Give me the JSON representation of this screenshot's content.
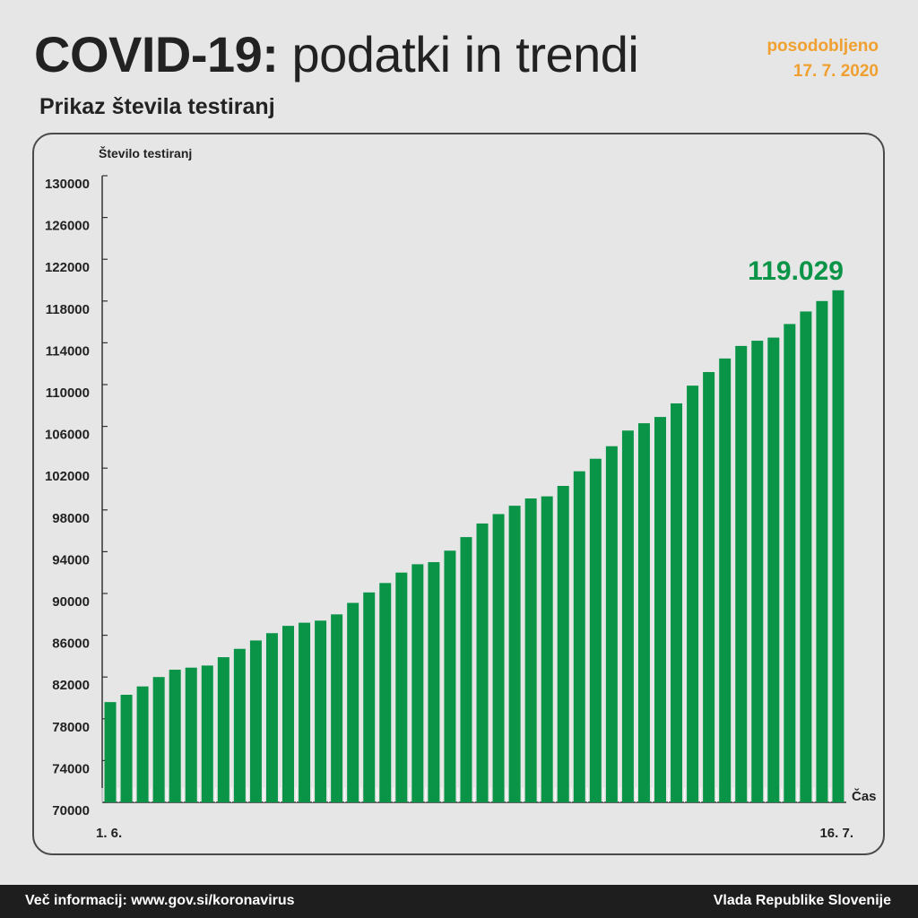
{
  "header": {
    "title_bold": "COVID-19:",
    "title_light": "podatki in trendi",
    "updated_label": "posodobljeno",
    "updated_date": "17. 7. 2020",
    "subtitle": "Prikaz števila testiranj"
  },
  "footer": {
    "left": "Več informacij: www.gov.si/koronavirus",
    "right": "Vlada Republike Slovenije"
  },
  "colors": {
    "bar": "#0a9447",
    "highlight": "#0a9447",
    "updated": "#f0a030",
    "background": "#e6e6e6"
  },
  "chart_data": {
    "type": "bar",
    "title": "Prikaz števila testiranj",
    "ylabel": "Število testiranj",
    "xlabel": "Čas",
    "ylim": [
      70000,
      130000
    ],
    "yticks": [
      "130000",
      "126000",
      "122000",
      "118000",
      "114000",
      "110000",
      "106000",
      "102000",
      "98000",
      "94000",
      "90000",
      "86000",
      "82000",
      "78000",
      "74000",
      "70000"
    ],
    "x_start_label": "1. 6.",
    "x_end_label": "16. 7.",
    "highlight_label": "119.029",
    "grid": false,
    "values": [
      79600,
      80300,
      81100,
      82000,
      82700,
      82900,
      83100,
      83900,
      84700,
      85500,
      86200,
      86900,
      87200,
      87400,
      88000,
      89100,
      90100,
      91000,
      92000,
      92800,
      93000,
      94100,
      95400,
      96700,
      97600,
      98400,
      99100,
      99300,
      100300,
      101700,
      102900,
      104100,
      105600,
      106300,
      106900,
      108200,
      109900,
      111200,
      112500,
      113700,
      114200,
      114500,
      115800,
      117000,
      118000,
      119029
    ]
  }
}
